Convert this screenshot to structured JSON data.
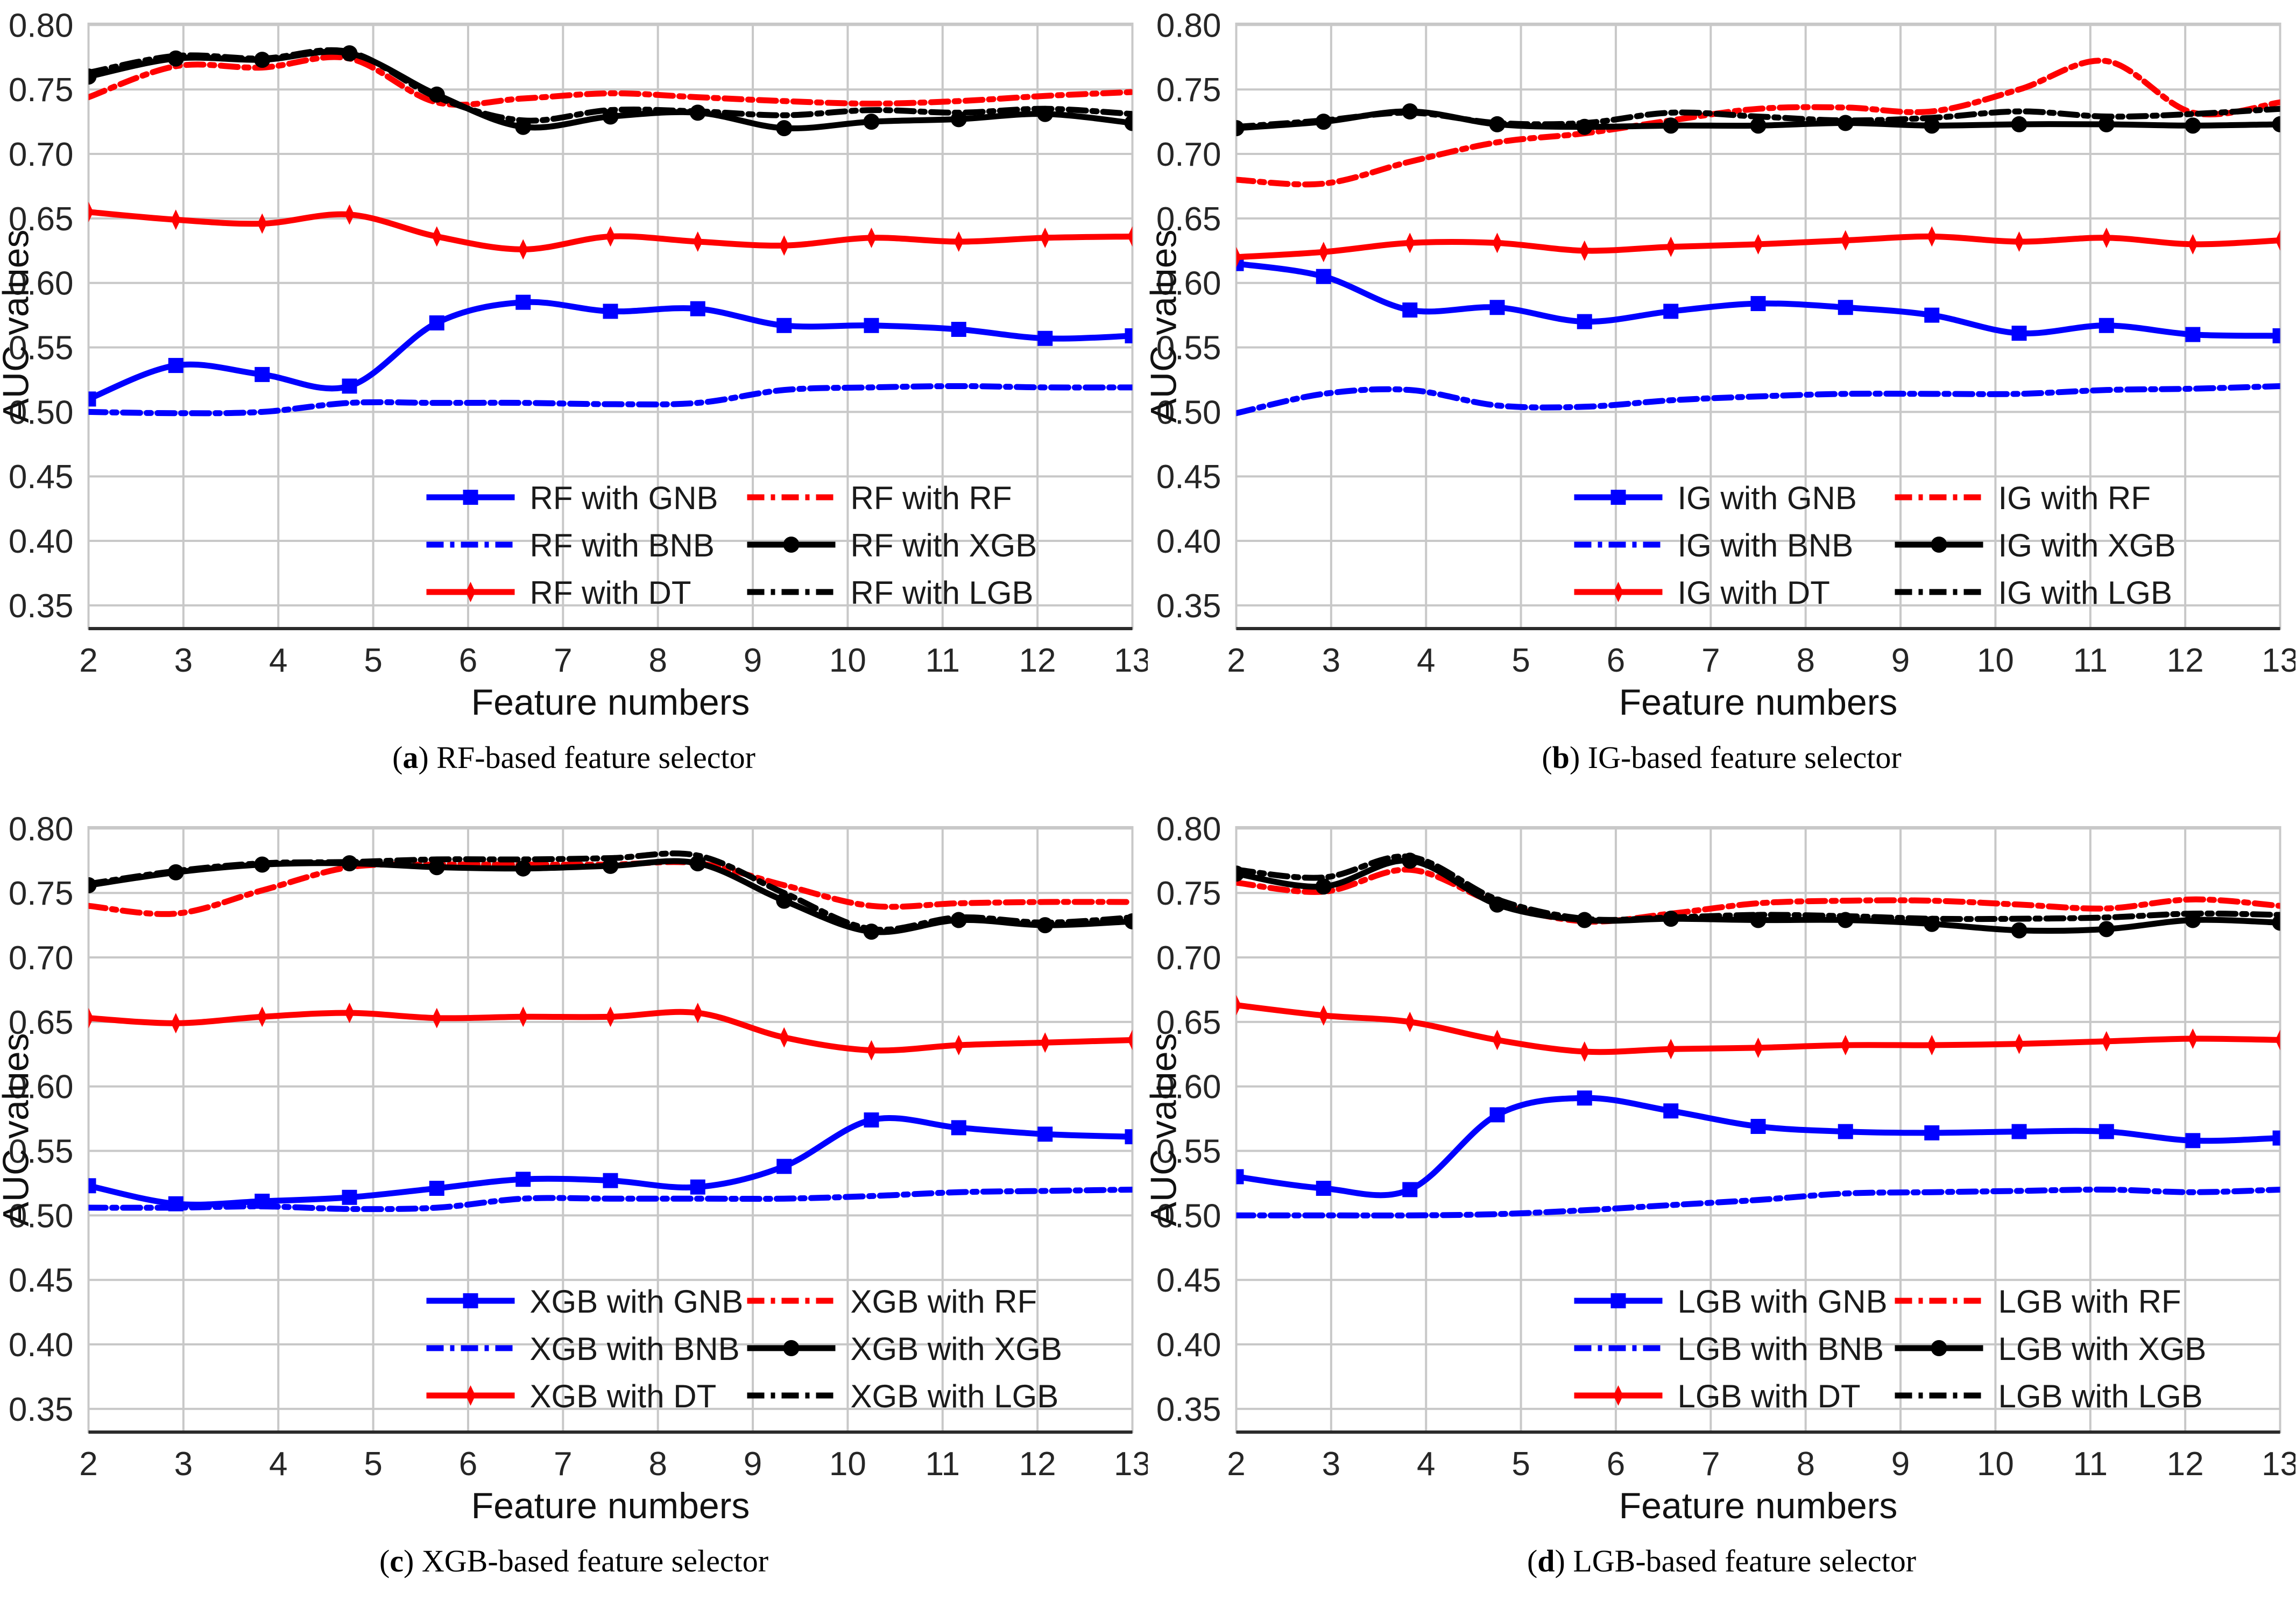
{
  "figure": {
    "xlabel": "Feature numbers",
    "ylabel": "AUC values",
    "xticks": [
      "2",
      "3",
      "4",
      "5",
      "6",
      "7",
      "8",
      "9",
      "10",
      "11",
      "12",
      "13"
    ],
    "yticks": [
      "0.35",
      "0.40",
      "0.45",
      "0.50",
      "0.55",
      "0.60",
      "0.65",
      "0.70",
      "0.75",
      "0.80"
    ],
    "paren_open": "(",
    "paren_close": ") ",
    "grid": true,
    "legend_cols": 2,
    "colors": {
      "blue": "#0000ff",
      "red": "#ff0000",
      "black": "#000000",
      "grid": "#c8c8c8",
      "tick_text": "#262626"
    }
  },
  "chart_data": [
    {
      "id": "a",
      "type": "line",
      "caption_letter": "a",
      "caption_text": "RF-based feature selector",
      "xlabel": "Feature numbers",
      "ylabel": "AUC values",
      "xlim": [
        2,
        13
      ],
      "ylim": [
        0.332,
        0.801
      ],
      "x": [
        2,
        2.92,
        3.83,
        4.75,
        5.67,
        6.58,
        7.5,
        8.42,
        9.33,
        10.25,
        11.17,
        12.08,
        13
      ],
      "series": [
        {
          "name": "RF with GNB",
          "color": "#0000ff",
          "style": "solid",
          "marker": "square",
          "values": [
            0.51,
            0.536,
            0.529,
            0.52,
            0.569,
            0.585,
            0.578,
            0.58,
            0.567,
            0.567,
            0.564,
            0.557,
            0.559
          ]
        },
        {
          "name": "RF with BNB",
          "color": "#0000ff",
          "style": "dashdot",
          "marker": "none",
          "values": [
            0.5,
            0.499,
            0.5,
            0.507,
            0.507,
            0.507,
            0.506,
            0.507,
            0.517,
            0.519,
            0.52,
            0.519,
            0.519
          ]
        },
        {
          "name": "RF with DT",
          "color": "#ff0000",
          "style": "solid",
          "marker": "diamond",
          "values": [
            0.655,
            0.649,
            0.646,
            0.653,
            0.636,
            0.626,
            0.636,
            0.632,
            0.629,
            0.635,
            0.632,
            0.635,
            0.636
          ]
        },
        {
          "name": "RF with RF",
          "color": "#ff0000",
          "style": "dashdot",
          "marker": "none",
          "values": [
            0.744,
            0.768,
            0.767,
            0.774,
            0.74,
            0.743,
            0.747,
            0.744,
            0.741,
            0.739,
            0.741,
            0.745,
            0.748
          ]
        },
        {
          "name": "RF with XGB",
          "color": "#000000",
          "style": "solid",
          "marker": "circle",
          "values": [
            0.76,
            0.774,
            0.773,
            0.778,
            0.746,
            0.721,
            0.729,
            0.732,
            0.72,
            0.725,
            0.727,
            0.731,
            0.724
          ]
        },
        {
          "name": "RF with LGB",
          "color": "#000000",
          "style": "dashdot",
          "marker": "none",
          "values": [
            0.763,
            0.776,
            0.774,
            0.779,
            0.744,
            0.726,
            0.734,
            0.733,
            0.73,
            0.734,
            0.732,
            0.735,
            0.731
          ]
        }
      ]
    },
    {
      "id": "b",
      "type": "line",
      "caption_letter": "b",
      "caption_text": "IG-based feature selector",
      "xlabel": "Feature numbers",
      "ylabel": "AUC values",
      "xlim": [
        2,
        13
      ],
      "ylim": [
        0.332,
        0.801
      ],
      "x": [
        2,
        2.92,
        3.83,
        4.75,
        5.67,
        6.58,
        7.5,
        8.42,
        9.33,
        10.25,
        11.17,
        12.08,
        13
      ],
      "series": [
        {
          "name": "IG with GNB",
          "color": "#0000ff",
          "style": "solid",
          "marker": "square",
          "values": [
            0.615,
            0.605,
            0.579,
            0.581,
            0.57,
            0.578,
            0.584,
            0.581,
            0.575,
            0.561,
            0.567,
            0.56,
            0.559
          ]
        },
        {
          "name": "IG with BNB",
          "color": "#0000ff",
          "style": "dashdot",
          "marker": "none",
          "values": [
            0.499,
            0.514,
            0.517,
            0.505,
            0.504,
            0.509,
            0.512,
            0.514,
            0.514,
            0.514,
            0.517,
            0.518,
            0.52
          ]
        },
        {
          "name": "IG with DT",
          "color": "#ff0000",
          "style": "solid",
          "marker": "diamond",
          "values": [
            0.62,
            0.624,
            0.631,
            0.631,
            0.625,
            0.628,
            0.63,
            0.633,
            0.636,
            0.632,
            0.635,
            0.63,
            0.633
          ]
        },
        {
          "name": "IG with RF",
          "color": "#ff0000",
          "style": "dashdot",
          "marker": "none",
          "values": [
            0.68,
            0.677,
            0.694,
            0.709,
            0.716,
            0.726,
            0.735,
            0.736,
            0.733,
            0.75,
            0.772,
            0.732,
            0.74
          ]
        },
        {
          "name": "IG with XGB",
          "color": "#000000",
          "style": "solid",
          "marker": "circle",
          "values": [
            0.72,
            0.725,
            0.733,
            0.723,
            0.721,
            0.722,
            0.722,
            0.724,
            0.722,
            0.723,
            0.723,
            0.722,
            0.723
          ]
        },
        {
          "name": "IG with LGB",
          "color": "#000000",
          "style": "dashdot",
          "marker": "none",
          "values": [
            0.721,
            0.726,
            0.732,
            0.724,
            0.724,
            0.732,
            0.729,
            0.726,
            0.728,
            0.733,
            0.729,
            0.731,
            0.735
          ]
        }
      ]
    },
    {
      "id": "c",
      "type": "line",
      "caption_letter": "c",
      "caption_text": "XGB-based feature selector",
      "xlabel": "Feature numbers",
      "ylabel": "AUC values",
      "xlim": [
        2,
        13
      ],
      "ylim": [
        0.332,
        0.801
      ],
      "x": [
        2,
        2.92,
        3.83,
        4.75,
        5.67,
        6.58,
        7.5,
        8.42,
        9.33,
        10.25,
        11.17,
        12.08,
        13
      ],
      "series": [
        {
          "name": "XGB with GNB",
          "color": "#0000ff",
          "style": "solid",
          "marker": "square",
          "values": [
            0.523,
            0.509,
            0.511,
            0.514,
            0.521,
            0.528,
            0.527,
            0.522,
            0.538,
            0.574,
            0.568,
            0.563,
            0.561
          ]
        },
        {
          "name": "XGB with BNB",
          "color": "#0000ff",
          "style": "dashdot",
          "marker": "none",
          "values": [
            0.506,
            0.506,
            0.507,
            0.505,
            0.506,
            0.513,
            0.513,
            0.513,
            0.513,
            0.515,
            0.518,
            0.519,
            0.52
          ]
        },
        {
          "name": "XGB with DT",
          "color": "#ff0000",
          "style": "solid",
          "marker": "diamond",
          "values": [
            0.653,
            0.649,
            0.654,
            0.657,
            0.653,
            0.654,
            0.654,
            0.657,
            0.638,
            0.628,
            0.632,
            0.634,
            0.636
          ]
        },
        {
          "name": "XGB with RF",
          "color": "#ff0000",
          "style": "dashdot",
          "marker": "none",
          "values": [
            0.74,
            0.734,
            0.752,
            0.77,
            0.772,
            0.772,
            0.772,
            0.773,
            0.756,
            0.74,
            0.742,
            0.743,
            0.743
          ]
        },
        {
          "name": "XGB with XGB",
          "color": "#000000",
          "style": "solid",
          "marker": "circle",
          "values": [
            0.756,
            0.766,
            0.772,
            0.773,
            0.77,
            0.769,
            0.771,
            0.773,
            0.744,
            0.72,
            0.729,
            0.725,
            0.728
          ]
        },
        {
          "name": "XGB with LGB",
          "color": "#000000",
          "style": "dashdot",
          "marker": "none",
          "values": [
            0.757,
            0.767,
            0.773,
            0.774,
            0.776,
            0.776,
            0.777,
            0.779,
            0.75,
            0.722,
            0.731,
            0.727,
            0.731
          ]
        }
      ]
    },
    {
      "id": "d",
      "type": "line",
      "caption_letter": "d",
      "caption_text": "LGB-based feature selector",
      "xlabel": "Feature numbers",
      "ylabel": "AUC values",
      "xlim": [
        2,
        13
      ],
      "ylim": [
        0.332,
        0.801
      ],
      "x": [
        2,
        2.92,
        3.83,
        4.75,
        5.67,
        6.58,
        7.5,
        8.42,
        9.33,
        10.25,
        11.17,
        12.08,
        13
      ],
      "series": [
        {
          "name": "LGB with GNB",
          "color": "#0000ff",
          "style": "solid",
          "marker": "square",
          "values": [
            0.53,
            0.521,
            0.52,
            0.578,
            0.591,
            0.581,
            0.569,
            0.565,
            0.564,
            0.565,
            0.565,
            0.558,
            0.56
          ]
        },
        {
          "name": "LGB with BNB",
          "color": "#0000ff",
          "style": "dashdot",
          "marker": "none",
          "values": [
            0.5,
            0.5,
            0.5,
            0.501,
            0.504,
            0.508,
            0.512,
            0.517,
            0.518,
            0.519,
            0.52,
            0.518,
            0.52
          ]
        },
        {
          "name": "LGB with DT",
          "color": "#ff0000",
          "style": "solid",
          "marker": "diamond",
          "values": [
            0.663,
            0.655,
            0.65,
            0.636,
            0.627,
            0.629,
            0.63,
            0.632,
            0.632,
            0.633,
            0.635,
            0.637,
            0.636
          ]
        },
        {
          "name": "LGB with RF",
          "color": "#ff0000",
          "style": "dashdot",
          "marker": "none",
          "values": [
            0.758,
            0.751,
            0.768,
            0.742,
            0.728,
            0.734,
            0.742,
            0.744,
            0.744,
            0.741,
            0.738,
            0.745,
            0.74
          ]
        },
        {
          "name": "LGB with XGB",
          "color": "#000000",
          "style": "solid",
          "marker": "circle",
          "values": [
            0.765,
            0.755,
            0.775,
            0.741,
            0.729,
            0.73,
            0.729,
            0.729,
            0.726,
            0.721,
            0.722,
            0.729,
            0.727
          ]
        },
        {
          "name": "LGB with LGB",
          "color": "#000000",
          "style": "dashdot",
          "marker": "none",
          "values": [
            0.768,
            0.762,
            0.778,
            0.745,
            0.73,
            0.731,
            0.733,
            0.732,
            0.73,
            0.73,
            0.731,
            0.734,
            0.733
          ]
        }
      ]
    }
  ]
}
